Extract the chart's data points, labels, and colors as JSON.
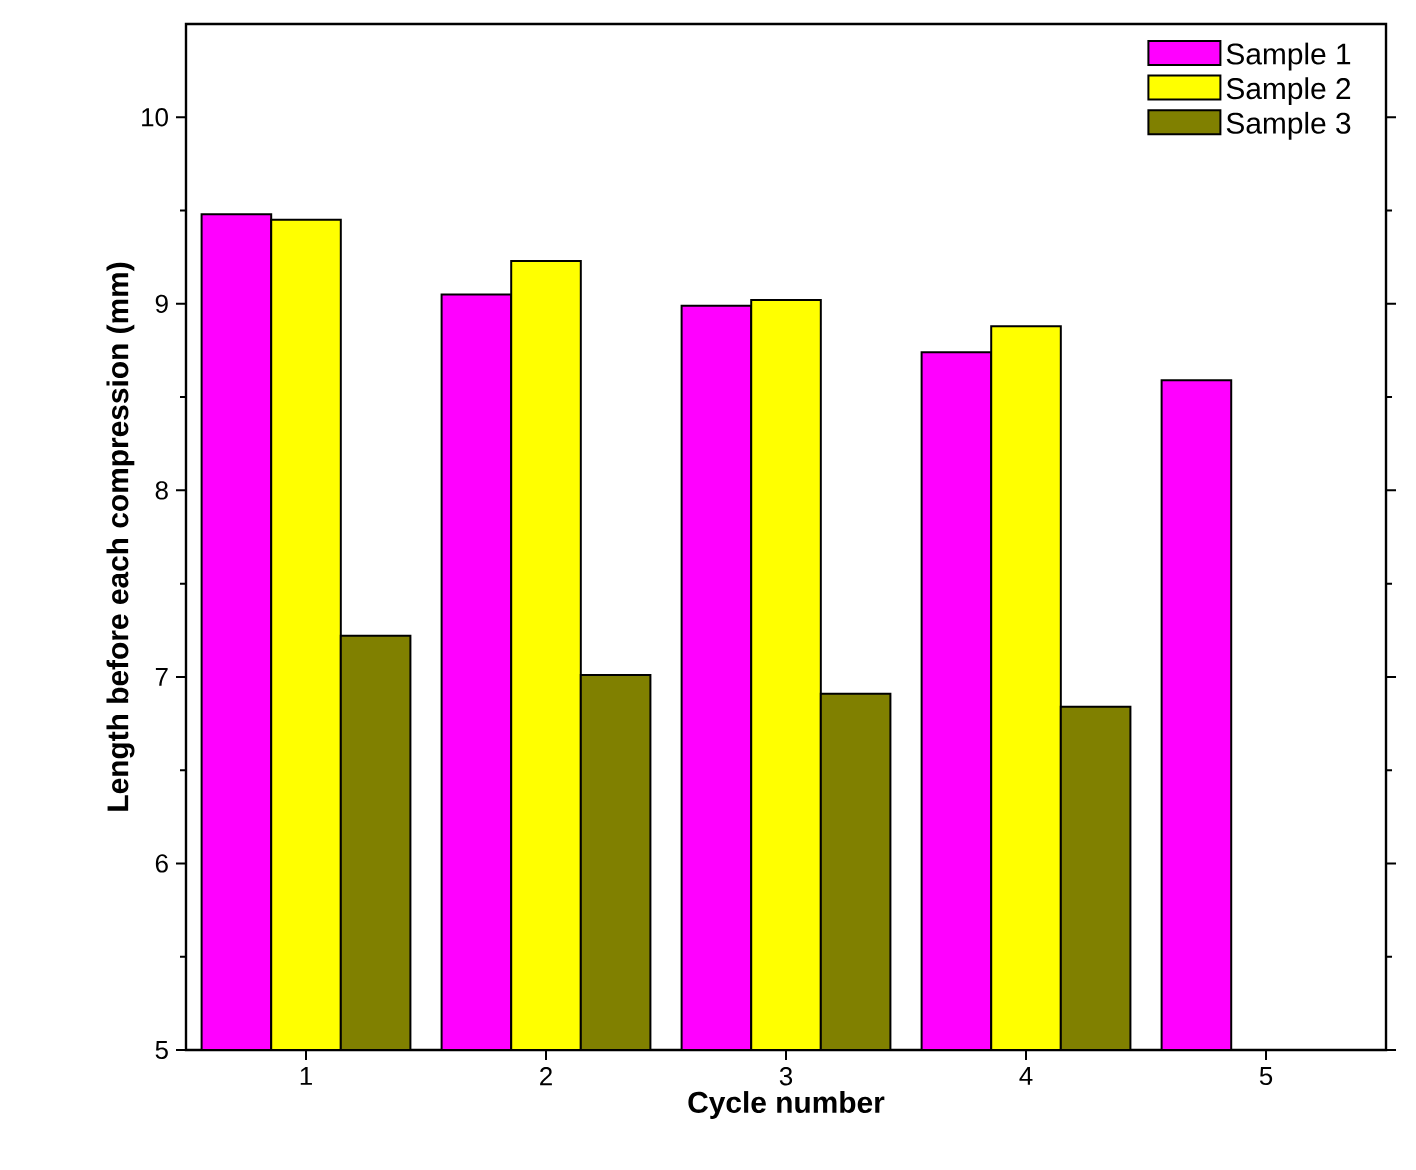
{
  "chart_data": {
    "type": "bar",
    "xlabel": "Cycle number",
    "ylabel": "Length before each compression (mm)",
    "categories": [
      "1",
      "2",
      "3",
      "4",
      "5"
    ],
    "series": [
      {
        "name": "Sample 1",
        "color": "#ff00ff",
        "values": [
          9.48,
          9.05,
          8.99,
          8.74,
          8.59
        ]
      },
      {
        "name": "Sample 2",
        "color": "#ffff00",
        "values": [
          9.45,
          9.23,
          9.02,
          8.88,
          null
        ]
      },
      {
        "name": "Sample 3",
        "color": "#808000",
        "values": [
          7.22,
          7.01,
          6.91,
          6.84,
          null
        ]
      }
    ],
    "ylim": [
      5,
      10.5
    ],
    "yticks": [
      5,
      6,
      7,
      8,
      9,
      10
    ],
    "grid": false,
    "legend": "top right"
  }
}
